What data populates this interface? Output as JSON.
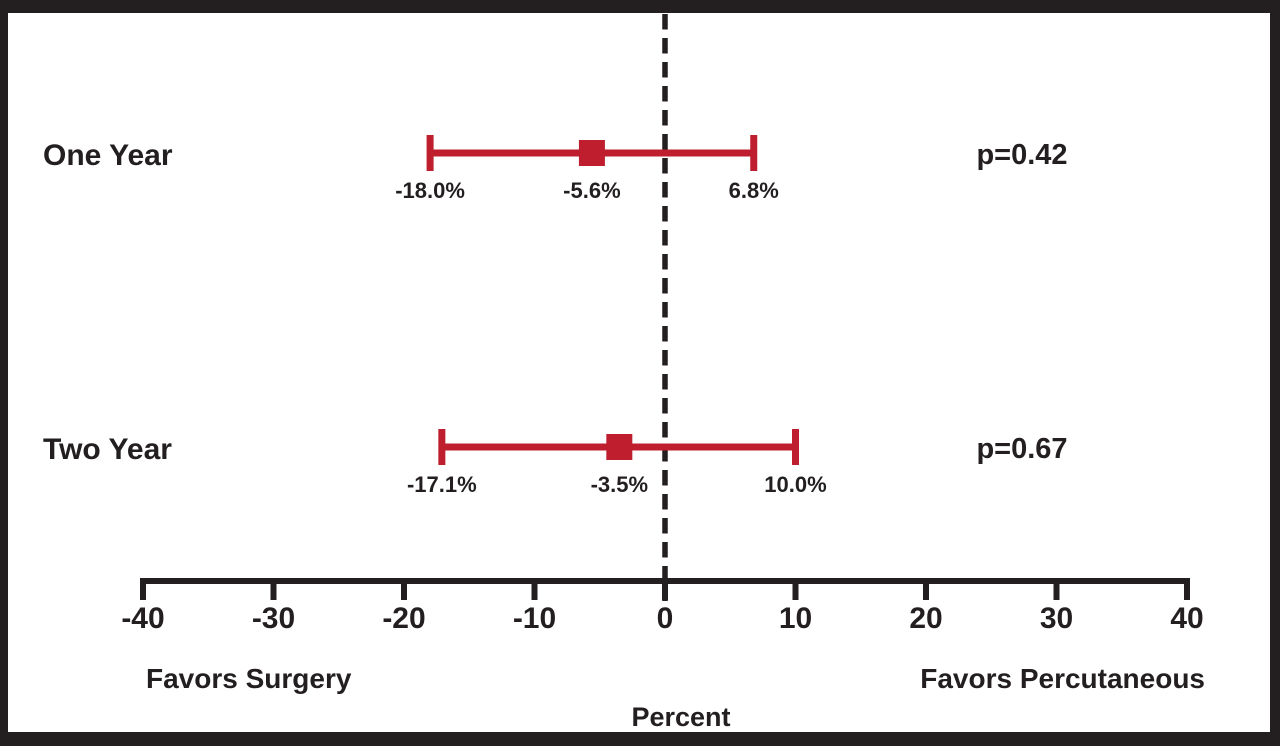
{
  "chart_data": {
    "type": "forest",
    "title": "",
    "xlabel": "Percent",
    "xlim": [
      -40,
      40
    ],
    "x_ticks": [
      -40,
      -30,
      -20,
      -10,
      0,
      10,
      20,
      30,
      40
    ],
    "x_tick_labels": [
      "-40",
      "-30",
      "-20",
      "-10",
      "0",
      "10",
      "20",
      "30",
      "40"
    ],
    "reference_line_x": 0,
    "left_caption": "Favors Surgery",
    "right_caption": "Favors Percutaneous",
    "grid": "off",
    "rows": [
      {
        "label": "One Year",
        "low": -18.0,
        "mid": -5.6,
        "high": 6.8,
        "low_label": "-18.0%",
        "mid_label": "-5.6%",
        "high_label": "6.8%",
        "p_label": "p=0.42"
      },
      {
        "label": "Two Year",
        "low": -17.1,
        "mid": -3.5,
        "high": 10.0,
        "low_label": "-17.1%",
        "mid_label": "-3.5%",
        "high_label": "10.0%",
        "p_label": "p=0.67"
      }
    ],
    "colors": {
      "interval": "#BE1E2D",
      "axis": "#231F20",
      "text": "#231F20",
      "background": "#FFFFFF"
    }
  }
}
